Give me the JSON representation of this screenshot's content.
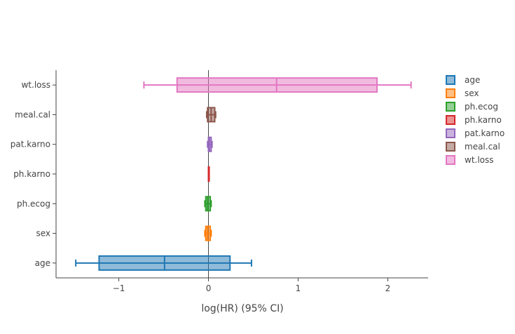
{
  "chart_data": {
    "type": "box",
    "orientation": "horizontal",
    "title": "",
    "xlabel": "log(HR) (95% CI)",
    "ylabel": "",
    "xlim": [
      -1.7,
      2.45
    ],
    "xticks": [
      -1,
      0,
      1,
      2
    ],
    "xtick_labels": [
      "−1",
      "0",
      "1",
      "2"
    ],
    "grid": false,
    "legend_position": "right",
    "categories": [
      "age",
      "sex",
      "ph.ecog",
      "ph.karno",
      "pat.karno",
      "meal.cal",
      "wt.loss"
    ],
    "series": [
      {
        "name": "age",
        "color": "#1f77b4",
        "whisker_low": -1.48,
        "q1": -1.22,
        "median": -0.49,
        "q3": 0.24,
        "whisker_high": 0.48
      },
      {
        "name": "sex",
        "color": "#ff7f0e",
        "whisker_low": -0.04,
        "q1": -0.03,
        "median": -0.01,
        "q3": 0.02,
        "whisker_high": 0.03
      },
      {
        "name": "ph.ecog",
        "color": "#2ca02c",
        "whisker_low": -0.04,
        "q1": -0.03,
        "median": -0.01,
        "q3": 0.02,
        "whisker_high": 0.03
      },
      {
        "name": "ph.karno",
        "color": "#d62728",
        "whisker_low": 0.0,
        "q1": 0.0,
        "median": 0.0,
        "q3": 0.0,
        "whisker_high": 0.0
      },
      {
        "name": "pat.karno",
        "color": "#9467bd",
        "whisker_low": -0.01,
        "q1": 0.0,
        "median": 0.01,
        "q3": 0.03,
        "whisker_high": 0.04
      },
      {
        "name": "meal.cal",
        "color": "#8c564b",
        "whisker_low": -0.02,
        "q1": -0.01,
        "median": 0.03,
        "q3": 0.07,
        "whisker_high": 0.08
      },
      {
        "name": "wt.loss",
        "color": "#e377c2",
        "whisker_low": -0.72,
        "q1": -0.35,
        "median": 0.76,
        "q3": 1.88,
        "whisker_high": 2.26
      }
    ]
  }
}
